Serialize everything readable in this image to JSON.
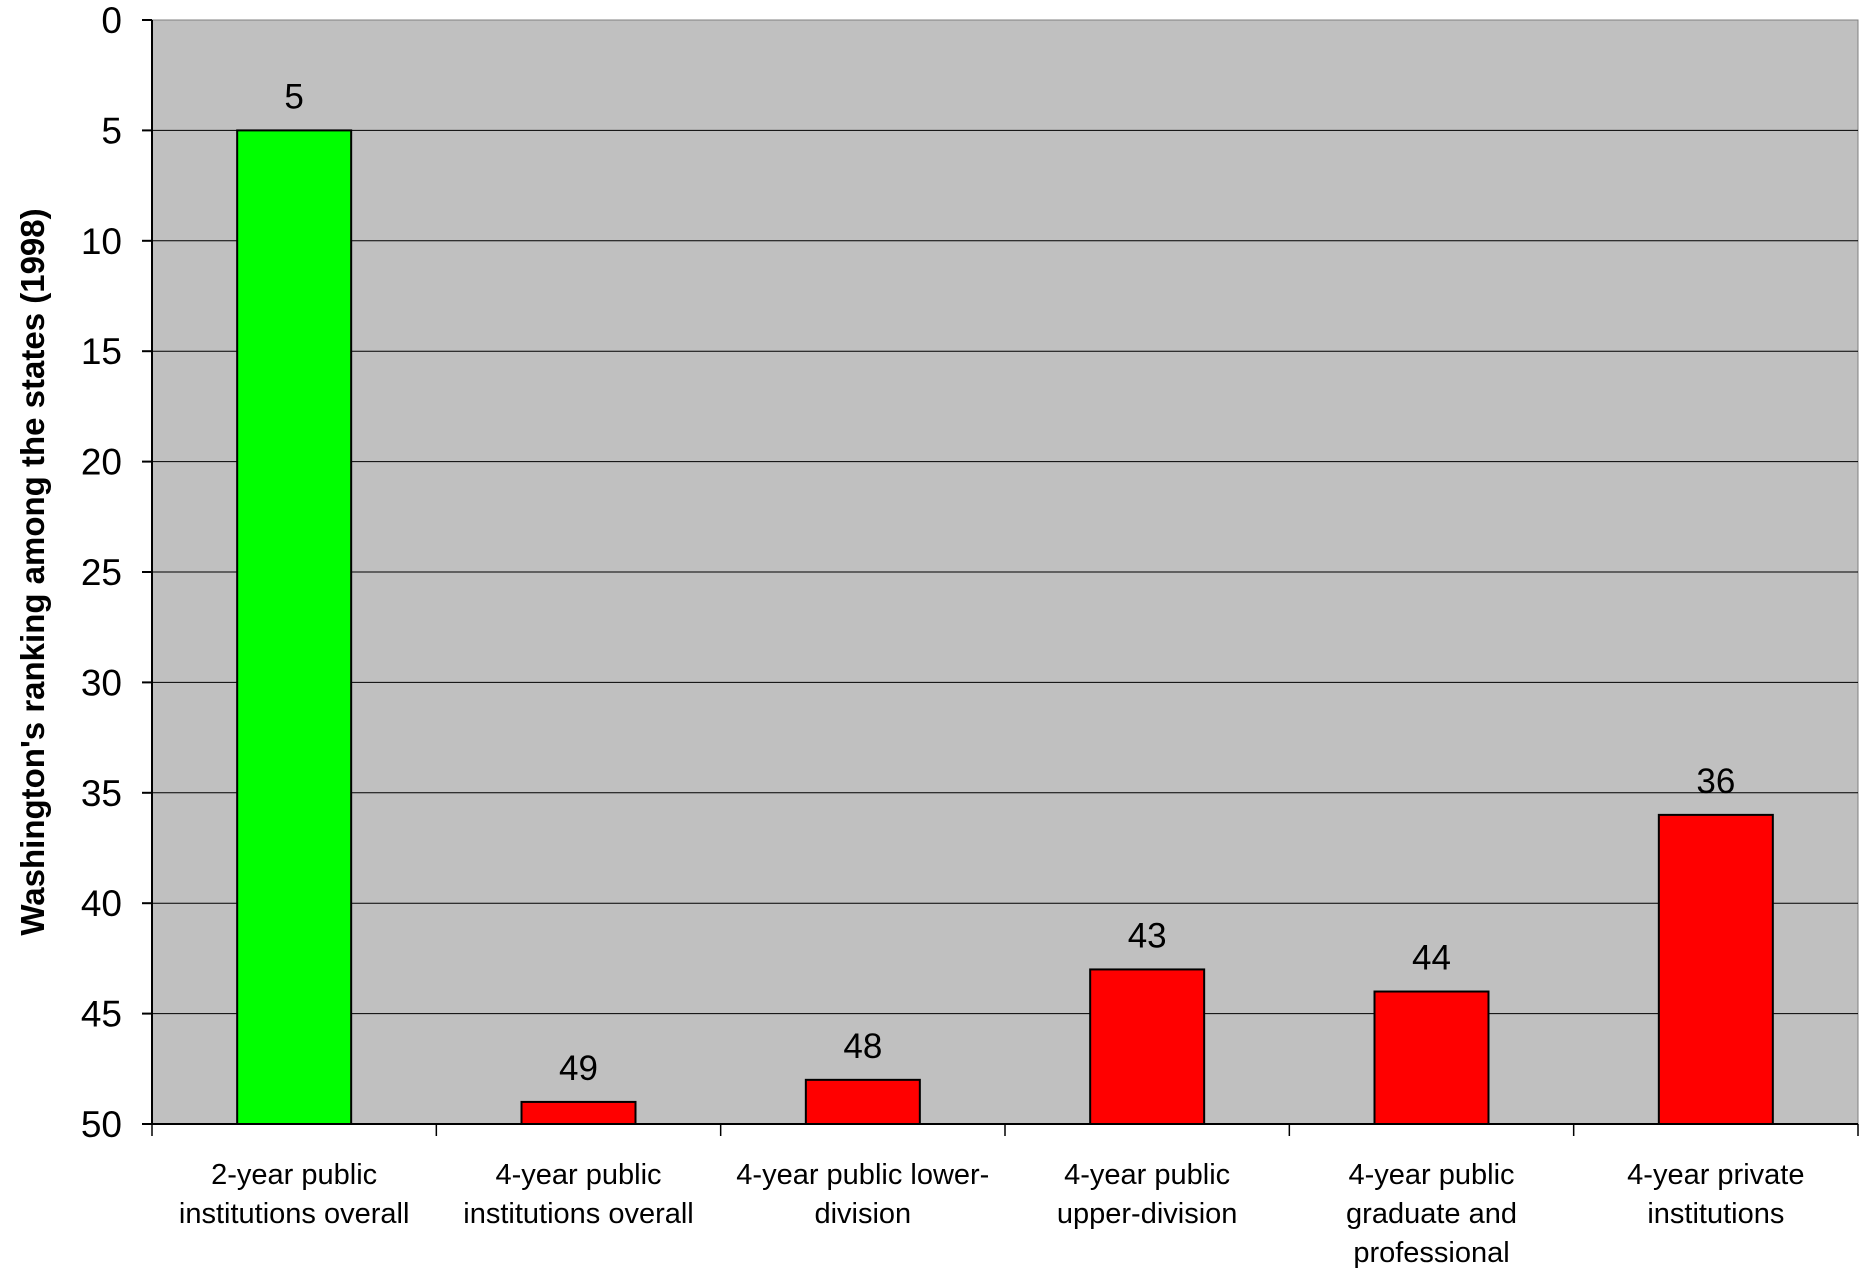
{
  "chart_data": {
    "type": "bar",
    "title": "",
    "xlabel": "",
    "ylabel": "Washington's ranking among the states (1998)",
    "ylim": [
      0,
      50
    ],
    "y_inverted": true,
    "y_ticks": [
      0,
      5,
      10,
      15,
      20,
      25,
      30,
      35,
      40,
      45,
      50
    ],
    "grid": true,
    "legend": "none",
    "categories": [
      [
        "2-year public",
        "institutions overall"
      ],
      [
        "4-year public",
        "institutions overall"
      ],
      [
        "4-year public lower-",
        "division"
      ],
      [
        "4-year public",
        "upper-division"
      ],
      [
        "4-year public",
        "graduate and",
        "professional"
      ],
      [
        "4-year private",
        "institutions"
      ]
    ],
    "values": [
      5,
      49,
      48,
      43,
      44,
      36
    ],
    "data_labels": [
      "5",
      "49",
      "48",
      "43",
      "44",
      "36"
    ],
    "bar_colors": [
      "#00ff00",
      "#ff0000",
      "#ff0000",
      "#ff0000",
      "#ff0000",
      "#ff0000"
    ],
    "plot_background": "#c0c0c0",
    "gridline_color": "#000000"
  }
}
